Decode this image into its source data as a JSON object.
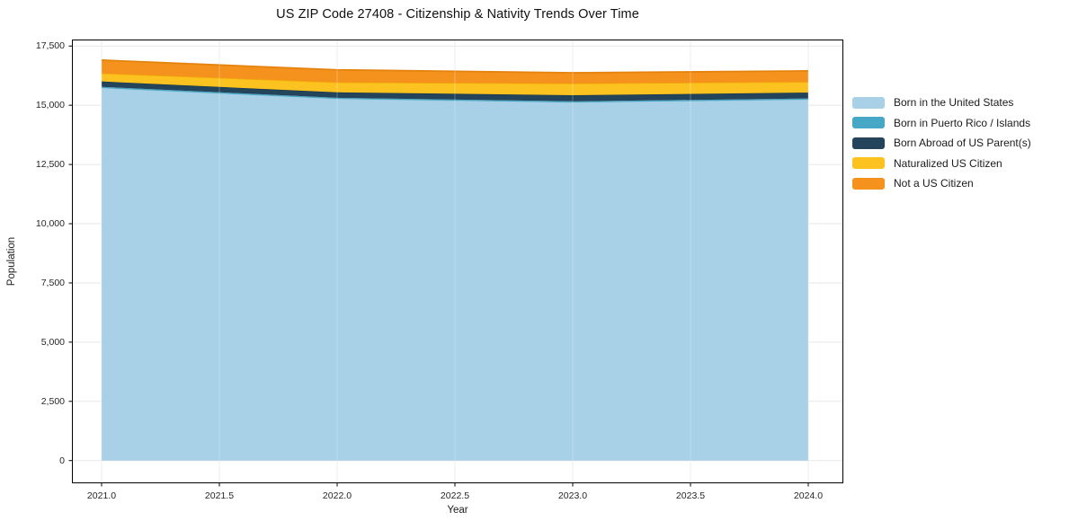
{
  "chart_data": {
    "type": "area",
    "stacked": true,
    "title": "US ZIP Code 27408 - Citizenship & Nativity Trends Over Time",
    "xlabel": "Year",
    "ylabel": "Population",
    "x": [
      2021,
      2022,
      2023,
      2024
    ],
    "series": [
      {
        "name": "Born in the United States",
        "color": "#a8d0e6",
        "edge": "#93c6de",
        "values": [
          15730,
          15270,
          15120,
          15240
        ]
      },
      {
        "name": "Born in Puerto Rico / Islands",
        "color": "#46a7c6",
        "edge": "#3b93b0",
        "values": [
          45,
          45,
          45,
          45
        ]
      },
      {
        "name": "Born Abroad of US Parent(s)",
        "color": "#23445a",
        "edge": "#1a3749",
        "values": [
          230,
          230,
          260,
          250
        ]
      },
      {
        "name": "Naturalized US Citizen",
        "color": "#fcc320",
        "edge": "#f2ae05",
        "values": [
          340,
          420,
          490,
          450
        ]
      },
      {
        "name": "Not a US Citizen",
        "color": "#f5921e",
        "edge": "#e5830f",
        "values": [
          560,
          530,
          455,
          465
        ]
      }
    ],
    "x_ticks": {
      "values": [
        2021,
        2021.5,
        2022,
        2022.5,
        2023,
        2023.5,
        2024
      ],
      "labels": [
        "2021.0",
        "2021.5",
        "2022.0",
        "2022.5",
        "2023.0",
        "2023.5",
        "2024.0"
      ]
    },
    "y_ticks": {
      "values": [
        0,
        2500,
        5000,
        7500,
        10000,
        12500,
        15000,
        17500
      ],
      "labels": [
        "0",
        "2,500",
        "5,000",
        "7,500",
        "10,000",
        "12,500",
        "15,000",
        "17,500"
      ]
    },
    "xlim": [
      2020.876,
      2024.147
    ],
    "ylim": [
      -940,
      17756
    ],
    "grid": true,
    "legend_position": "right"
  },
  "colors": {
    "grid": "#e7e7e7",
    "grid_over_area": "rgba(255,255,255,0.28)",
    "frame": "#000000",
    "tick": "#000000",
    "background": "#ffffff"
  }
}
